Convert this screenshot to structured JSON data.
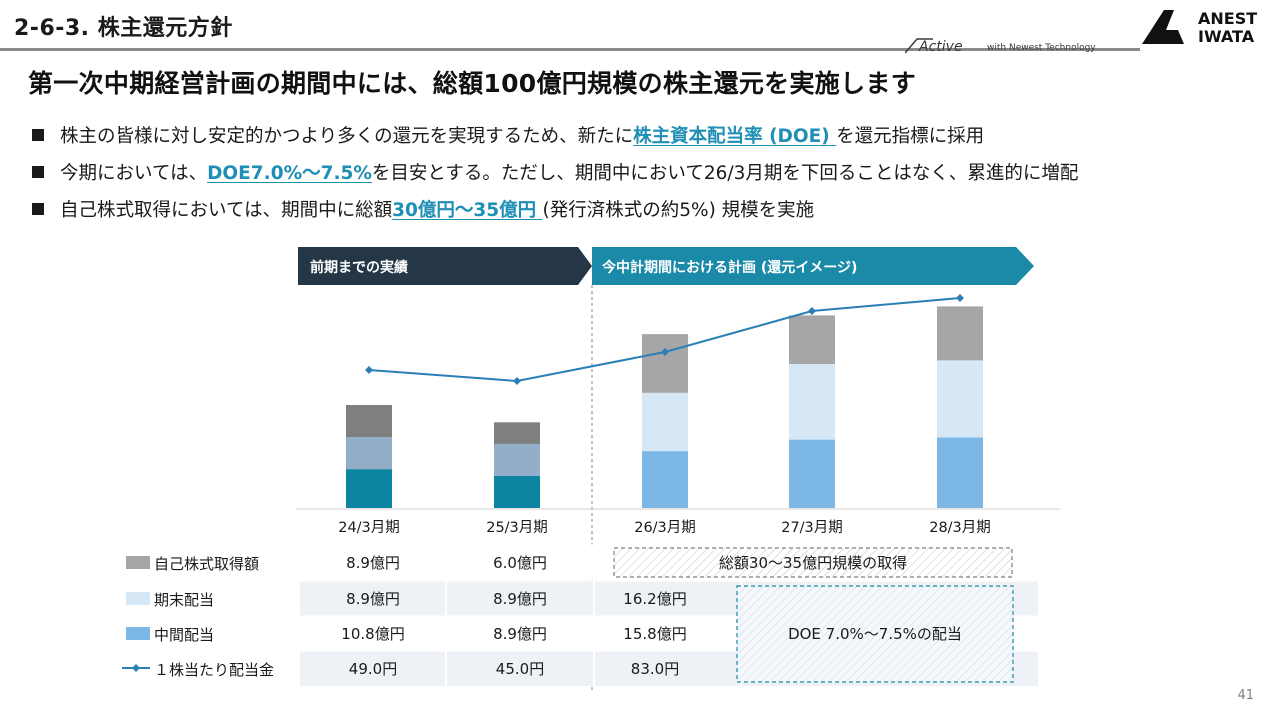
{
  "header": {
    "section_title": "2-6-3. 株主還元方針",
    "tagline_active": "Active",
    "tagline_rest": "with Newest Technology",
    "brand_line1": "ANEST",
    "brand_line2": "IWATA"
  },
  "main_title": "第一次中期経営計画の期間中には、総額100億円規模の株主還元を実施します",
  "bullets": [
    {
      "pre": "株主の皆様に対し安定的かつより多くの還元を実現するため、新たに",
      "hl": "株主資本配当率 (DOE) ",
      "post": "を還元指標に採用"
    },
    {
      "pre": "今期においては、",
      "hl": "DOE7.0%～7.5%",
      "post": "を目安とする。ただし、期間中において26/3月期を下回ることはなく、累進的に増配"
    },
    {
      "pre": "自己株式取得においては、期間中に総額",
      "hl": "30億円～35億円 ",
      "post": "(発行済株式の約5%) 規模を実施"
    }
  ],
  "banners": {
    "past": "前期までの実績",
    "plan": "今中計期間における計画 (還元イメージ)"
  },
  "colors": {
    "past_buyback": "#7f7f7f",
    "past_final": "#93aec8",
    "past_interim": "#0e85a0",
    "plan_buyback": "#a6a6a6",
    "plan_final": "#d6e8f6",
    "plan_interim": "#7db7e5",
    "line": "#2a7fb4",
    "banner_past": "#253746",
    "banner_plan": "#1a8aa8",
    "highlight": "#1f8fb5"
  },
  "chart_data": {
    "type": "bar",
    "stacked": true,
    "categories": [
      "24/3月期",
      "25/3月期",
      "26/3月期",
      "27/3月期",
      "28/3月期"
    ],
    "series": [
      {
        "name": "中間配当",
        "unit": "億円",
        "values": [
          10.8,
          8.9,
          15.8,
          null,
          null
        ]
      },
      {
        "name": "期末配当",
        "unit": "億円",
        "values": [
          8.9,
          8.9,
          16.2,
          null,
          null
        ]
      },
      {
        "name": "自己株式取得額",
        "unit": "億円",
        "values": [
          8.9,
          6.0,
          null,
          null,
          null
        ]
      }
    ],
    "line_series": {
      "name": "１株当たり配当金",
      "unit": "円",
      "values": [
        49.0,
        45.0,
        83.0,
        null,
        null
      ]
    },
    "note": "27/3月期・28/3月期 are illustrative plan bars without printed values"
  },
  "table": {
    "rows": [
      {
        "label": "自己株式取得額",
        "values": [
          "8.9億円",
          "6.0億円"
        ]
      },
      {
        "label": "期末配当",
        "values": [
          "8.9億円",
          "8.9億円",
          "16.2億円"
        ]
      },
      {
        "label": "中間配当",
        "values": [
          "10.8億円",
          "8.9億円",
          "15.8億円"
        ]
      },
      {
        "label": "１株当たり配当金",
        "values": [
          "49.0円",
          "45.0円",
          "83.0円"
        ]
      }
    ],
    "buyback_plan_note": "総額30～35億円規模の取得",
    "doe_plan_note": "DOE 7.0%～7.5%の配当"
  },
  "page_number": "41"
}
